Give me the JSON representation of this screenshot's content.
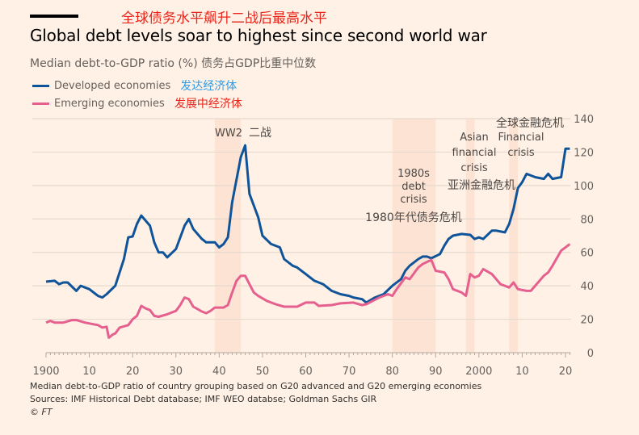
{
  "header": {
    "title_cn": "全球债务水平飙升二战后最高水平",
    "title": "Global debt levels soar to highest since second world war",
    "subtitle": "Median debt-to-GDP ratio (%) 债务占GDP比重中位数"
  },
  "legend": [
    {
      "label": "Developed economies",
      "label_cn": "发达经济体",
      "color": "#0F5499",
      "cn_color": "#2E9BE6"
    },
    {
      "label": "Emerging economies",
      "label_cn": "发展中经济体",
      "color": "#E5608F",
      "cn_color": "#E8261C"
    }
  ],
  "footer": {
    "note": "Median debt-to-GDP ratio of country grouping based on G20 advanced and G20 emerging economies",
    "sources": "Sources: IMF Historical Debt database; IMF WEO databse; Goldman Sachs GIR",
    "copyright": "© FT"
  },
  "chart_data": {
    "type": "line",
    "title": "Global debt levels soar to highest since second world war",
    "ylabel": "Median debt-to-GDP ratio (%)",
    "xlabel": "",
    "xlim": [
      1900,
      2021
    ],
    "ylim": [
      0,
      140
    ],
    "y_axis_side": "right",
    "grid": true,
    "x_ticks": [
      {
        "value": 1900,
        "label": "1900"
      },
      {
        "value": 1910,
        "label": "10"
      },
      {
        "value": 1920,
        "label": "20"
      },
      {
        "value": 1930,
        "label": "30"
      },
      {
        "value": 1940,
        "label": "40"
      },
      {
        "value": 1950,
        "label": "50"
      },
      {
        "value": 1960,
        "label": "60"
      },
      {
        "value": 1970,
        "label": "70"
      },
      {
        "value": 1980,
        "label": "80"
      },
      {
        "value": 1990,
        "label": "90"
      },
      {
        "value": 2000,
        "label": "2000"
      },
      {
        "value": 2010,
        "label": "10"
      },
      {
        "value": 2020,
        "label": "20"
      }
    ],
    "y_ticks": [
      0,
      20,
      40,
      60,
      80,
      100,
      120,
      140
    ],
    "legend_position": "top-left",
    "series": [
      {
        "name": "Developed economies",
        "color": "#0F5499",
        "points": [
          [
            1900,
            42.5
          ],
          [
            1902,
            43
          ],
          [
            1903,
            41
          ],
          [
            1904,
            42
          ],
          [
            1905,
            42
          ],
          [
            1907,
            37
          ],
          [
            1908,
            40
          ],
          [
            1910,
            38
          ],
          [
            1912,
            34
          ],
          [
            1913,
            33
          ],
          [
            1914,
            35
          ],
          [
            1916,
            40
          ],
          [
            1918,
            56
          ],
          [
            1919,
            69
          ],
          [
            1920,
            69.5
          ],
          [
            1921,
            77
          ],
          [
            1922,
            82
          ],
          [
            1924,
            76
          ],
          [
            1925,
            66
          ],
          [
            1926,
            60
          ],
          [
            1927,
            60
          ],
          [
            1928,
            57
          ],
          [
            1930,
            62
          ],
          [
            1932,
            76
          ],
          [
            1933,
            80
          ],
          [
            1934,
            74
          ],
          [
            1936,
            68
          ],
          [
            1937,
            66
          ],
          [
            1939,
            66
          ],
          [
            1940,
            63
          ],
          [
            1941,
            65
          ],
          [
            1942,
            69
          ],
          [
            1943,
            90
          ],
          [
            1945,
            117
          ],
          [
            1946,
            124
          ],
          [
            1947,
            95
          ],
          [
            1949,
            81
          ],
          [
            1950,
            70
          ],
          [
            1952,
            65
          ],
          [
            1954,
            63
          ],
          [
            1955,
            56
          ],
          [
            1957,
            52
          ],
          [
            1958,
            51
          ],
          [
            1960,
            47
          ],
          [
            1962,
            43
          ],
          [
            1964,
            41
          ],
          [
            1966,
            37
          ],
          [
            1968,
            35
          ],
          [
            1970,
            34
          ],
          [
            1971,
            33
          ],
          [
            1973,
            32
          ],
          [
            1974,
            30
          ],
          [
            1976,
            33
          ],
          [
            1978,
            35
          ],
          [
            1980,
            40
          ],
          [
            1981,
            42
          ],
          [
            1982,
            44
          ],
          [
            1983,
            49
          ],
          [
            1984,
            52
          ],
          [
            1986,
            56
          ],
          [
            1987,
            57.5
          ],
          [
            1988,
            57.5
          ],
          [
            1989,
            56.5
          ],
          [
            1991,
            59
          ],
          [
            1992,
            64
          ],
          [
            1993,
            68
          ],
          [
            1994,
            70
          ],
          [
            1996,
            71
          ],
          [
            1998,
            70.5
          ],
          [
            1999,
            68
          ],
          [
            2000,
            69
          ],
          [
            2001,
            68
          ],
          [
            2003,
            73
          ],
          [
            2004,
            73
          ],
          [
            2006,
            72
          ],
          [
            2007,
            77
          ],
          [
            2008,
            86
          ],
          [
            2009,
            98.5
          ],
          [
            2010,
            102
          ],
          [
            2011,
            107
          ],
          [
            2013,
            105
          ],
          [
            2015,
            104
          ],
          [
            2016,
            107
          ],
          [
            2017,
            104
          ],
          [
            2019,
            105
          ],
          [
            2020,
            122
          ],
          [
            2021,
            122
          ]
        ]
      },
      {
        "name": "Emerging economies",
        "color": "#E5608F",
        "points": [
          [
            1900,
            18
          ],
          [
            1901,
            19
          ],
          [
            1902,
            18
          ],
          [
            1904,
            18
          ],
          [
            1906,
            19.5
          ],
          [
            1907,
            19.5
          ],
          [
            1909,
            18
          ],
          [
            1911,
            17
          ],
          [
            1912,
            16.5
          ],
          [
            1913,
            15
          ],
          [
            1914,
            15.5
          ],
          [
            1914.5,
            9
          ],
          [
            1915.5,
            11
          ],
          [
            1916,
            11.5
          ],
          [
            1917,
            15
          ],
          [
            1919,
            16.5
          ],
          [
            1920,
            20
          ],
          [
            1921,
            22
          ],
          [
            1922,
            28
          ],
          [
            1923,
            26.5
          ],
          [
            1924,
            25.5
          ],
          [
            1925,
            22
          ],
          [
            1926,
            21.5
          ],
          [
            1928,
            23
          ],
          [
            1930,
            25
          ],
          [
            1931,
            28.5
          ],
          [
            1932,
            33
          ],
          [
            1933,
            32
          ],
          [
            1934,
            27.5
          ],
          [
            1936,
            24.6
          ],
          [
            1937,
            23.6
          ],
          [
            1938,
            25
          ],
          [
            1939,
            27
          ],
          [
            1941,
            27
          ],
          [
            1942,
            28.5
          ],
          [
            1943,
            36
          ],
          [
            1944,
            43
          ],
          [
            1945,
            46
          ],
          [
            1946,
            46
          ],
          [
            1947,
            41
          ],
          [
            1948,
            36
          ],
          [
            1949,
            34
          ],
          [
            1951,
            31
          ],
          [
            1953,
            29
          ],
          [
            1955,
            27.5
          ],
          [
            1958,
            27.5
          ],
          [
            1960,
            30
          ],
          [
            1962,
            30
          ],
          [
            1963,
            28
          ],
          [
            1966,
            28.5
          ],
          [
            1968,
            29.5
          ],
          [
            1971,
            30
          ],
          [
            1973,
            28.5
          ],
          [
            1974,
            29
          ],
          [
            1977,
            33
          ],
          [
            1979,
            35
          ],
          [
            1980,
            34
          ],
          [
            1981,
            38
          ],
          [
            1983,
            45
          ],
          [
            1984,
            44
          ],
          [
            1986,
            51
          ],
          [
            1987,
            53
          ],
          [
            1989,
            55.5
          ],
          [
            1990,
            49
          ],
          [
            1992,
            48
          ],
          [
            1993,
            44
          ],
          [
            1994,
            38
          ],
          [
            1996,
            36
          ],
          [
            1997,
            34
          ],
          [
            1998,
            47
          ],
          [
            1999,
            45
          ],
          [
            2000,
            46
          ],
          [
            2001,
            50
          ],
          [
            2003,
            47
          ],
          [
            2005,
            41
          ],
          [
            2007,
            39
          ],
          [
            2008,
            42
          ],
          [
            2009,
            38
          ],
          [
            2011,
            37
          ],
          [
            2012,
            37
          ],
          [
            2013,
            40
          ],
          [
            2015,
            46
          ],
          [
            2016,
            48
          ],
          [
            2017,
            52
          ],
          [
            2019,
            61
          ],
          [
            2021,
            65
          ]
        ]
      }
    ],
    "shaded_periods": [
      {
        "start": 1939,
        "end": 1945,
        "label": "WW2",
        "label_cn": "二战"
      },
      {
        "start": 1980,
        "end": 1990,
        "label": "1980s debt crisis",
        "label_cn": "1980年代债务危机"
      },
      {
        "start": 1997,
        "end": 1999,
        "label": "Asian financial crisis",
        "label_cn": "亚洲金融危机"
      },
      {
        "start": 2007,
        "end": 2009,
        "label": "Financial crisis",
        "label_cn": "全球金融危机"
      }
    ],
    "annotations": [
      {
        "lines": [
          "WW2"
        ],
        "cn": "二战"
      },
      {
        "lines": [
          "1980s",
          "debt",
          "crisis"
        ],
        "cn": "1980年代债务危机"
      },
      {
        "lines": [
          "Asian",
          "financial",
          "crisis"
        ],
        "cn": "亚洲金融危机"
      },
      {
        "lines": [
          "Financial",
          "crisis"
        ],
        "cn": "全球金融危机"
      }
    ]
  }
}
